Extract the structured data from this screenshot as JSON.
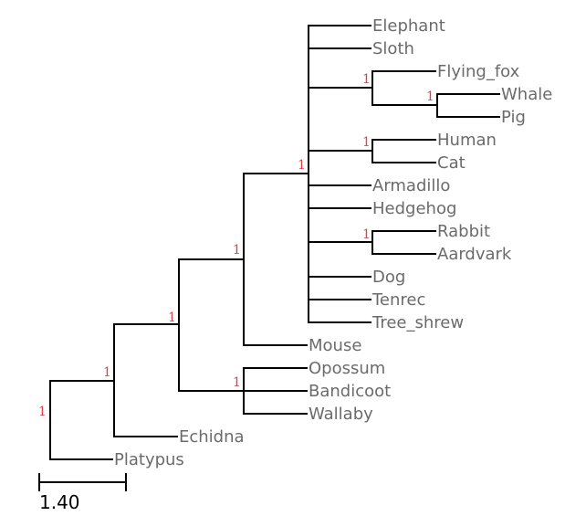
{
  "tree": {
    "leaves": [
      "Elephant",
      "Sloth",
      "Flying_fox",
      "Whale",
      "Pig",
      "Human",
      "Cat",
      "Armadillo",
      "Hedgehog",
      "Rabbit",
      "Aardvark",
      "Dog",
      "Tenrec",
      "Tree_shrew",
      "Mouse",
      "Opossum",
      "Bandicoot",
      "Wallaby",
      "Echidna",
      "Platypus"
    ],
    "support_values": [
      "1",
      "1",
      "1",
      "1",
      "1",
      "1",
      "1",
      "1",
      "1",
      "1"
    ],
    "scale_bar": {
      "label": "1.40"
    },
    "colors": {
      "branch": "#000000",
      "leaf_label": "#6b6b6b",
      "support": "#d8424a"
    }
  }
}
